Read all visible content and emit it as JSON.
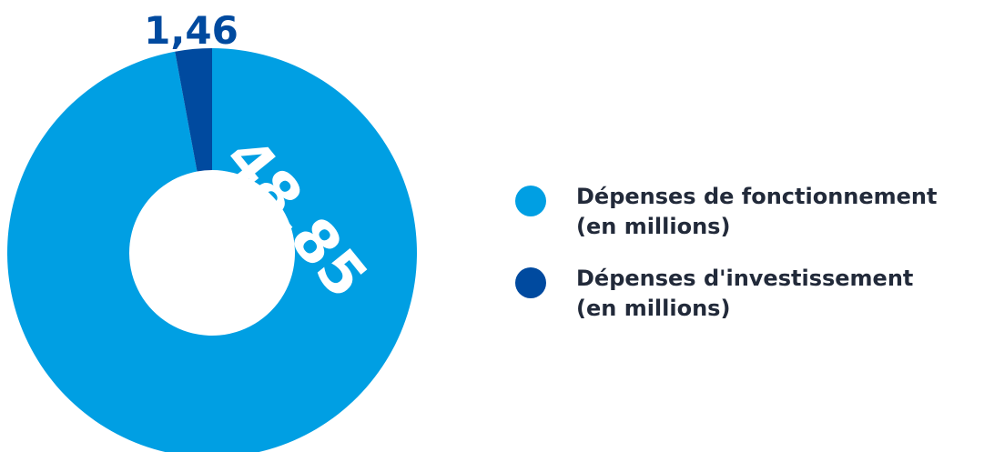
{
  "chart_data": {
    "type": "pie",
    "donut": true,
    "categories": [
      "Dépenses de fonctionnement\n(en millions)",
      "Dépenses d'investissement\n(en millions)"
    ],
    "values": [
      48.85,
      1.46
    ],
    "value_labels": [
      "48,85",
      "1,46"
    ],
    "colors": [
      "#009fe3",
      "#004a9f"
    ],
    "legend_position": "right"
  }
}
